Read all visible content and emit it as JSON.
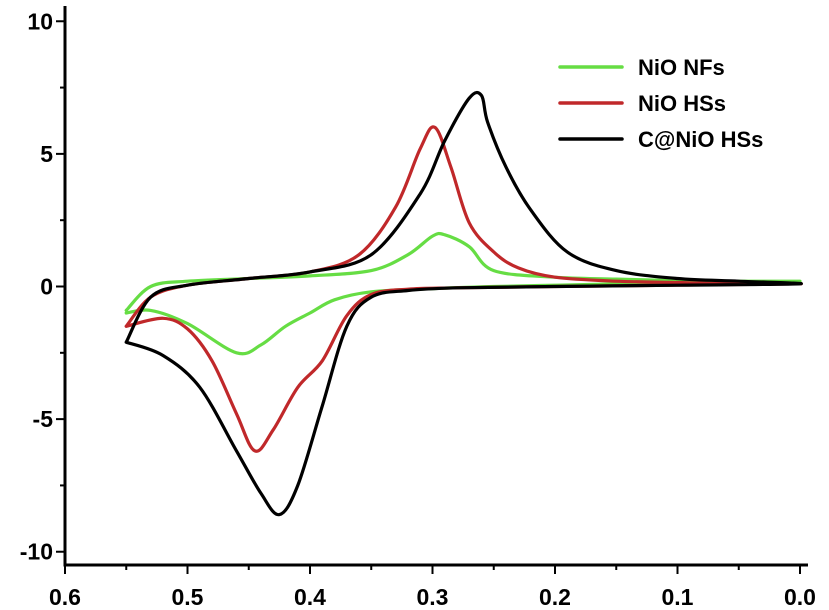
{
  "chart_data": {
    "type": "line",
    "title": "",
    "xlabel": "",
    "ylabel": "",
    "xlim": [
      0.6,
      0.0
    ],
    "ylim": [
      -10.5,
      10.5
    ],
    "x_ticks": [
      0.6,
      0.5,
      0.4,
      0.3,
      0.2,
      0.1,
      0.0
    ],
    "x_tick_labels": [
      "0.6",
      "0.5",
      "0.4",
      "0.3",
      "0.2",
      "0.1",
      "0.0"
    ],
    "y_ticks": [
      10,
      5,
      0,
      -5,
      -10
    ],
    "y_tick_labels": [
      "10",
      "5",
      "0",
      "-5",
      "-10"
    ],
    "x_reversed": true,
    "grid": false,
    "legend_position": "top-right",
    "series": [
      {
        "name": "NiO NFs",
        "color": "#66dd44",
        "x": [
          0.55,
          0.53,
          0.5,
          0.46,
          0.44,
          0.42,
          0.4,
          0.38,
          0.35,
          0.3,
          0.25,
          0.2,
          0.15,
          0.1,
          0.05,
          0.0,
          0.05,
          0.1,
          0.15,
          0.2,
          0.25,
          0.27,
          0.29,
          0.3,
          0.32,
          0.35,
          0.4,
          0.45,
          0.5,
          0.53,
          0.55
        ],
        "y": [
          -1.0,
          -0.9,
          -1.4,
          -2.5,
          -2.2,
          -1.5,
          -1.0,
          -0.5,
          -0.2,
          -0.08,
          0.0,
          0.05,
          0.1,
          0.15,
          0.18,
          0.2,
          0.2,
          0.22,
          0.28,
          0.35,
          0.6,
          1.5,
          1.95,
          1.9,
          1.2,
          0.6,
          0.4,
          0.3,
          0.2,
          0.0,
          -0.9
        ]
      },
      {
        "name": "NiO HSs",
        "color": "#c0282a",
        "x": [
          0.55,
          0.52,
          0.5,
          0.48,
          0.46,
          0.445,
          0.43,
          0.41,
          0.39,
          0.37,
          0.35,
          0.32,
          0.28,
          0.2,
          0.1,
          0.0,
          0.05,
          0.1,
          0.15,
          0.2,
          0.23,
          0.25,
          0.27,
          0.285,
          0.298,
          0.31,
          0.33,
          0.36,
          0.4,
          0.45,
          0.5,
          0.53,
          0.55
        ],
        "y": [
          -1.5,
          -1.2,
          -1.6,
          -2.8,
          -4.8,
          -6.2,
          -5.4,
          -3.8,
          -2.8,
          -1.1,
          -0.3,
          -0.1,
          -0.05,
          0.0,
          0.05,
          0.1,
          0.1,
          0.15,
          0.2,
          0.35,
          0.7,
          1.3,
          2.4,
          4.5,
          6.0,
          5.2,
          3.0,
          1.2,
          0.55,
          0.3,
          0.05,
          -0.4,
          -1.5
        ]
      },
      {
        "name": "C@NiO HSs",
        "color": "#000000",
        "x": [
          0.55,
          0.52,
          0.49,
          0.46,
          0.44,
          0.425,
          0.41,
          0.39,
          0.37,
          0.35,
          0.32,
          0.28,
          0.2,
          0.1,
          0.0,
          0.05,
          0.1,
          0.15,
          0.19,
          0.22,
          0.24,
          0.255,
          0.26,
          0.27,
          0.29,
          0.31,
          0.35,
          0.4,
          0.45,
          0.5,
          0.53,
          0.55
        ],
        "y": [
          -2.1,
          -2.6,
          -3.8,
          -6.2,
          -7.8,
          -8.6,
          -7.5,
          -4.5,
          -1.5,
          -0.4,
          -0.15,
          -0.05,
          0.0,
          0.05,
          0.1,
          0.2,
          0.3,
          0.6,
          1.3,
          2.9,
          4.5,
          6.2,
          7.2,
          7.1,
          5.5,
          3.5,
          1.2,
          0.55,
          0.3,
          0.05,
          -0.4,
          -2.1
        ]
      }
    ]
  }
}
